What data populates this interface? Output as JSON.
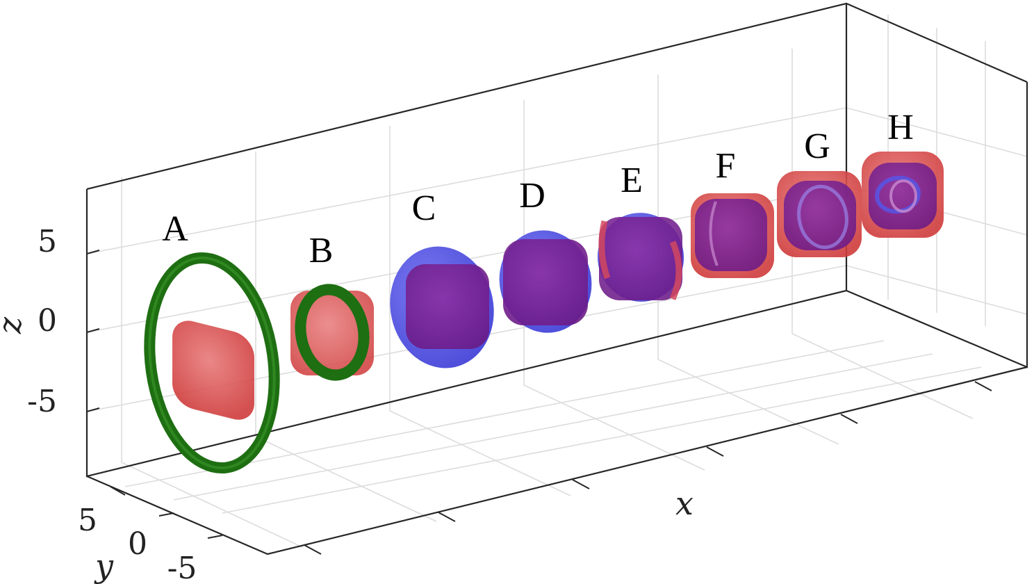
{
  "chart_data": {
    "type": "scatter",
    "title": "",
    "xlabel": "x",
    "ylabel": "y",
    "zlabel": "z",
    "y_ticks": [
      "5",
      "0",
      "-5"
    ],
    "z_ticks": [
      "5",
      "0",
      "-5"
    ],
    "grid": true,
    "colors": {
      "green": "#1e6e12",
      "red": "#e0504f",
      "blue": "#4f4fe3",
      "purple": "#7f2597"
    },
    "objects": [
      {
        "label": "A",
        "parts": [
          "green",
          "red"
        ]
      },
      {
        "label": "B",
        "parts": [
          "green",
          "red"
        ]
      },
      {
        "label": "C",
        "parts": [
          "blue",
          "purple"
        ]
      },
      {
        "label": "D",
        "parts": [
          "blue",
          "purple"
        ]
      },
      {
        "label": "E",
        "parts": [
          "purple",
          "blue",
          "red"
        ]
      },
      {
        "label": "F",
        "parts": [
          "purple",
          "red"
        ]
      },
      {
        "label": "G",
        "parts": [
          "red",
          "purple",
          "blue"
        ]
      },
      {
        "label": "H",
        "parts": [
          "red",
          "purple",
          "blue"
        ]
      }
    ]
  }
}
